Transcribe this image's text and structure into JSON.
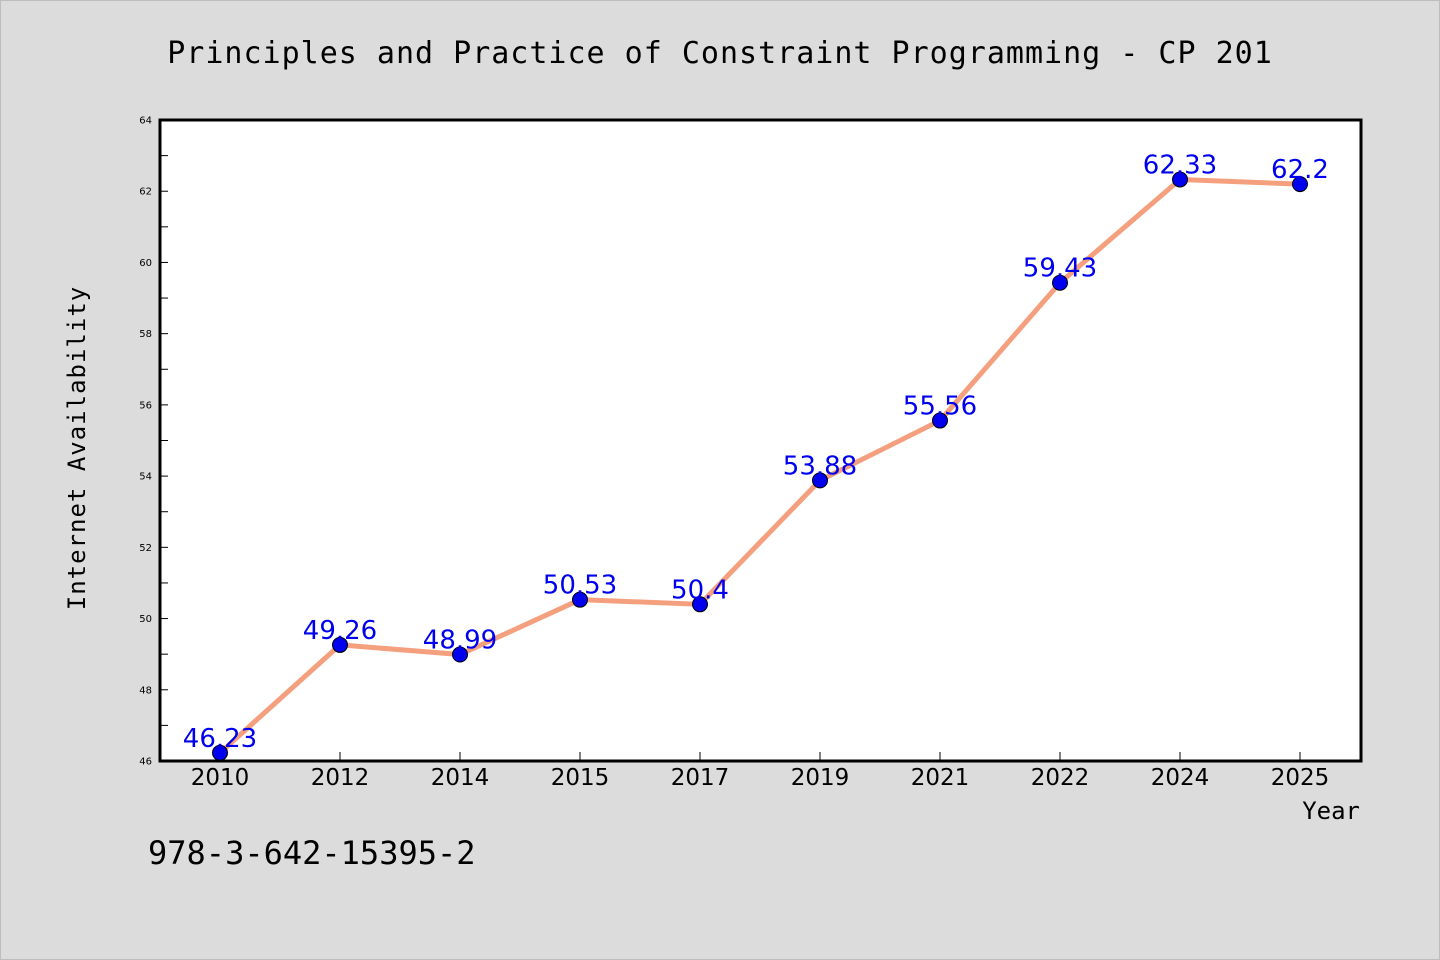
{
  "chart_data": {
    "type": "line",
    "title": "Principles and Practice of Constraint Programming - CP 201",
    "xlabel": "Year",
    "ylabel": "Internet Availability",
    "categories": [
      "2010",
      "2012",
      "2014",
      "2015",
      "2017",
      "2019",
      "2021",
      "2022",
      "2024",
      "2025"
    ],
    "values": [
      46.23,
      49.26,
      48.99,
      50.53,
      50.4,
      53.88,
      55.56,
      59.43,
      62.33,
      62.2
    ],
    "data_labels": [
      "46.23",
      "49.26",
      "48.99",
      "50.53",
      "50.4",
      "53.88",
      "55.56",
      "59.43",
      "62.33",
      "62.2"
    ],
    "ylim": [
      46,
      64
    ],
    "yticks": [
      "46",
      "48",
      "50",
      "52",
      "54",
      "56",
      "58",
      "60",
      "62",
      "64"
    ],
    "grid": false,
    "legend": "none",
    "line_color": "#f4a07e",
    "marker_color": "#0000ee",
    "label_color": "#0000ee"
  },
  "annotation": "978-3-642-15395-2"
}
